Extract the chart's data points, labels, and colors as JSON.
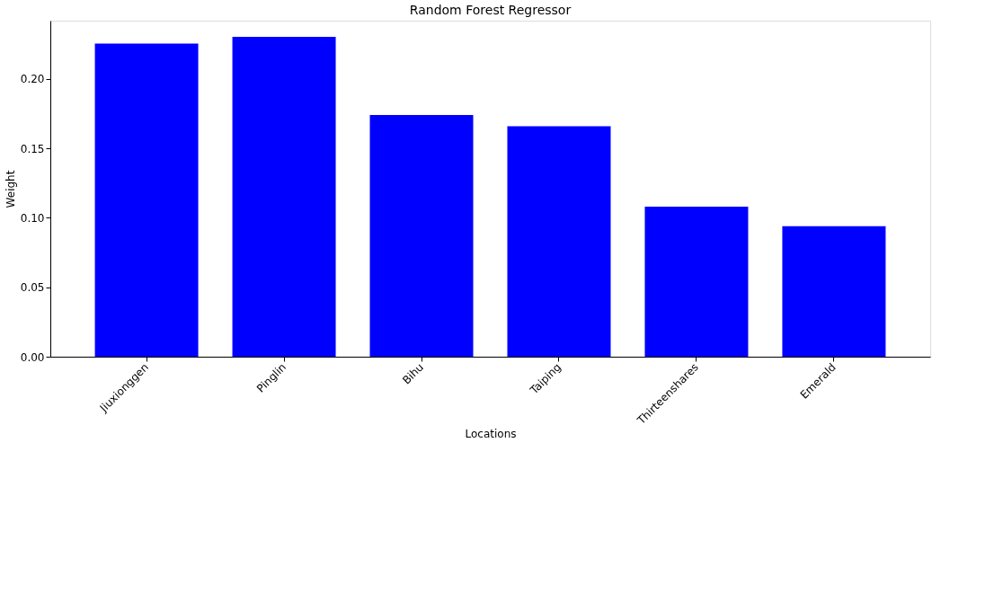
{
  "chart_data": {
    "type": "bar",
    "title": "Random Forest Regressor",
    "xlabel": "Locations",
    "ylabel": "Weight",
    "categories": [
      "Jiuxionggen",
      "Pinglin",
      "Bihu",
      "Taiping",
      "Thirteenshares",
      "Emerald"
    ],
    "values": [
      0.2255,
      0.2304,
      0.174,
      0.166,
      0.108,
      0.094
    ],
    "color": "#0000ff",
    "ylim": [
      0,
      0.242
    ],
    "yticks": [
      {
        "value": 0,
        "label": "0.00"
      },
      {
        "value": 0.05,
        "label": "0.05"
      },
      {
        "value": 0.1,
        "label": "0.10"
      },
      {
        "value": 0.15,
        "label": "0.15"
      },
      {
        "value": 0.2,
        "label": "0.20"
      }
    ],
    "grid": false
  }
}
